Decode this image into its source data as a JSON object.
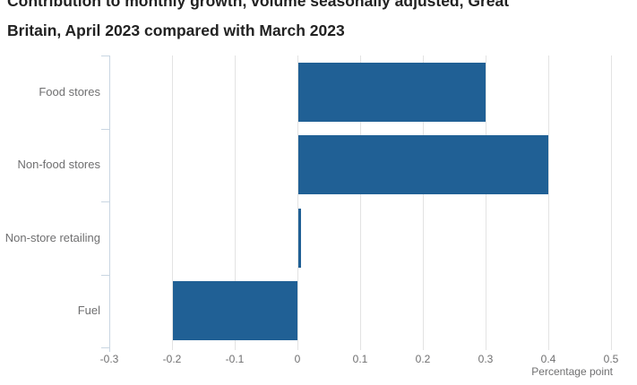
{
  "title": {
    "line1": "Contribution to monthly growth, volume seasonally adjusted, Great",
    "line2": "Britain, April 2023 compared with March 2023"
  },
  "chart_data": {
    "type": "bar",
    "orientation": "horizontal",
    "title": "Contribution to monthly growth, volume seasonally adjusted, Great Britain, April 2023 compared with March 2023",
    "categories": [
      "Food stores",
      "Non-food stores",
      "Non-store retailing",
      "Fuel"
    ],
    "values": [
      0.3,
      0.4,
      0.005,
      -0.2
    ],
    "xlabel": "Percentage point",
    "ylabel": "",
    "xlim": [
      -0.3,
      0.5
    ],
    "xtick_values": [
      -0.3,
      -0.2,
      -0.1,
      0,
      0.1,
      0.2,
      0.3,
      0.4,
      0.5
    ],
    "xtick_labels": [
      "-0.3",
      "-0.2",
      "-0.1",
      "0",
      "0.1",
      "0.2",
      "0.3",
      "0.4",
      "0.5"
    ],
    "grid": true,
    "legend": "none",
    "colors": {
      "bar": "#206095",
      "gridline": "#e3e3e3",
      "axis": "#c9d6e2",
      "tick_label": "#707071",
      "category_label": "#6f6f70",
      "title": "#222222",
      "background": "#ffffff"
    }
  }
}
